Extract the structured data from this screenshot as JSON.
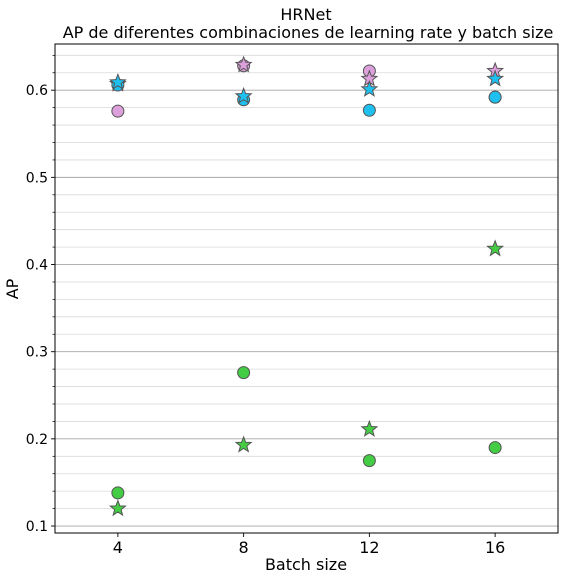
{
  "chart_data": {
    "type": "scatter",
    "title": "HRNet",
    "subtitle": "AP de diferentes combinaciones de learning rate y batch size",
    "xlabel": "Batch size",
    "ylabel": "AP",
    "xlim": [
      2,
      18
    ],
    "ylim": [
      0.092,
      0.653
    ],
    "x_ticks": [
      4,
      8,
      12,
      16
    ],
    "x_tick_labels": [
      "4",
      "8",
      "12",
      "16"
    ],
    "y_ticks": [
      0.1,
      0.2,
      0.3,
      0.4,
      0.5,
      0.6
    ],
    "y_tick_labels": [
      "0.1",
      "0.2",
      "0.3",
      "0.4",
      "0.5",
      "0.6"
    ],
    "grid": "horizontal major and minor lines",
    "legend": "none",
    "series": [
      {
        "marker": "circle",
        "color": "#dda0dd",
        "x": [
          4,
          8,
          12,
          16
        ],
        "y": [
          0.576,
          0.628,
          0.622,
          0.592
        ]
      },
      {
        "marker": "star",
        "color": "#dda0dd",
        "x": [
          4,
          8,
          12,
          16
        ],
        "y": [
          0.607,
          0.629,
          0.613,
          0.622
        ]
      },
      {
        "marker": "circle",
        "color": "#1ec0f0",
        "x": [
          4,
          8,
          12,
          16
        ],
        "y": [
          0.606,
          0.589,
          0.577,
          0.592
        ]
      },
      {
        "marker": "star",
        "color": "#1ec0f0",
        "x": [
          4,
          8,
          12,
          16
        ],
        "y": [
          0.609,
          0.593,
          0.601,
          0.613
        ]
      },
      {
        "marker": "circle",
        "color": "#44cc44",
        "x": [
          4,
          8,
          12,
          16
        ],
        "y": [
          0.138,
          0.276,
          0.175,
          0.19
        ]
      },
      {
        "marker": "star",
        "color": "#44cc44",
        "x": [
          4,
          8,
          12,
          16
        ],
        "y": [
          0.12,
          0.193,
          0.211,
          0.418
        ]
      }
    ]
  }
}
